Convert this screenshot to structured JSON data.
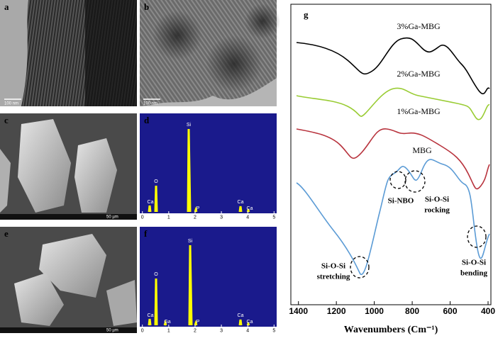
{
  "panels": {
    "a": {
      "label": "a",
      "scale_bar": "100 nm"
    },
    "b": {
      "label": "b",
      "scale_bar": "100 nm"
    },
    "c": {
      "label": "c",
      "scale_bar": "50 µm"
    },
    "d": {
      "label": "d",
      "peaks": [
        "Si",
        "O",
        "Ca",
        "P",
        "Ca",
        "Ca"
      ],
      "xlim": [
        -0.1,
        5.1
      ],
      "xticks": [
        0,
        1,
        2,
        3,
        4,
        5
      ]
    },
    "e": {
      "label": "e",
      "scale_bar": "50 µm"
    },
    "f": {
      "label": "f",
      "peaks": [
        "Si",
        "O",
        "Ca",
        "Ga",
        "P",
        "Ca",
        "Ca"
      ],
      "xlim": [
        -0.1,
        5.1
      ],
      "xticks": [
        0,
        1,
        2,
        3,
        4,
        5
      ]
    },
    "g": {
      "label": "g",
      "x_label": "Wavenumbers (Cm⁻¹)",
      "xlim": [
        1440,
        385
      ],
      "xticks": [
        1400,
        1200,
        1000,
        800,
        600,
        400
      ],
      "curves": [
        "3%Ga-MBG",
        "2%Ga-MBG",
        "1%Ga-MBG",
        "MBG"
      ],
      "annotations": {
        "nbo": "Si-NBO",
        "rock1": "Si-O-Si",
        "rock2": "rocking",
        "str1": "Si-O-Si",
        "str2": "stretching",
        "bend1": "Si-O-Si",
        "bend2": "bending"
      }
    }
  }
}
